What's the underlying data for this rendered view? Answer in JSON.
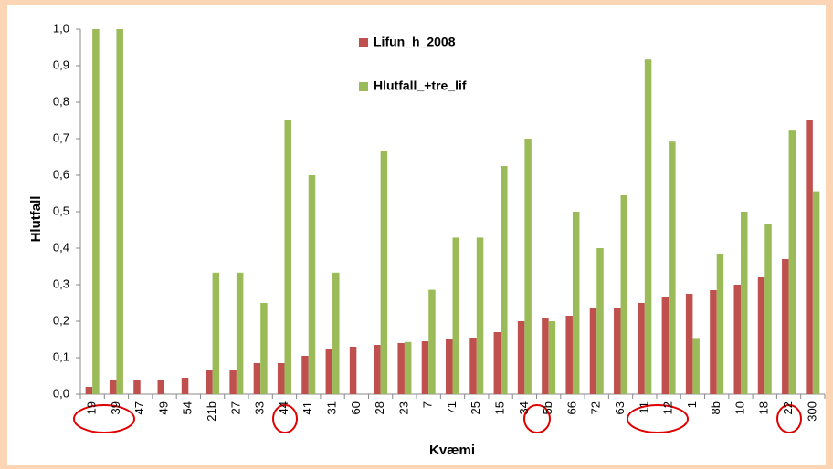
{
  "chart_data": {
    "type": "bar",
    "y_axis_label": "Hlutfall",
    "x_axis_label": "Kvæmi",
    "categories": [
      "19",
      "39",
      "47",
      "49",
      "54",
      "21b",
      "27",
      "33",
      "44",
      "41",
      "31",
      "60",
      "28",
      "23",
      "7",
      "71",
      "25",
      "15",
      "34",
      "5b",
      "66",
      "72",
      "63",
      "11",
      "12",
      "1",
      "8b",
      "10",
      "18",
      "22",
      "300"
    ],
    "series": [
      {
        "name": "Lifun_h_2008",
        "color": "#c0504d",
        "values": [
          0.02,
          0.04,
          0.04,
          0.04,
          0.045,
          0.065,
          0.065,
          0.085,
          0.085,
          0.105,
          0.125,
          0.13,
          0.135,
          0.14,
          0.145,
          0.15,
          0.155,
          0.17,
          0.2,
          0.21,
          0.215,
          0.235,
          0.235,
          0.25,
          0.265,
          0.275,
          0.285,
          0.3,
          0.32,
          0.37,
          0.75
        ]
      },
      {
        "name": "Hlutfall_+tre_lif",
        "color": "#9bbb59",
        "values": [
          1.0,
          1.0,
          0,
          0,
          0,
          0.333,
          0.333,
          0.25,
          0.75,
          0.6,
          0.333,
          0,
          0.667,
          0.143,
          0.286,
          0.429,
          0.429,
          0.625,
          0.7,
          0.2,
          0.5,
          0.4,
          0.545,
          0.917,
          0.692,
          0.154,
          0.385,
          0.5,
          0.467,
          0.722,
          0.556
        ]
      }
    ],
    "ylim": [
      0,
      1
    ],
    "yticks": [
      {
        "value": 0,
        "label": "0,0"
      },
      {
        "value": 0.1,
        "label": "0,1"
      },
      {
        "value": 0.2,
        "label": "0,2"
      },
      {
        "value": 0.3,
        "label": "0,3"
      },
      {
        "value": 0.4,
        "label": "0,4"
      },
      {
        "value": 0.5,
        "label": "0,5"
      },
      {
        "value": 0.6,
        "label": "0,6"
      },
      {
        "value": 0.7,
        "label": "0,7"
      },
      {
        "value": 0.8,
        "label": "0,8"
      },
      {
        "value": 0.9,
        "label": "0,9"
      },
      {
        "value": 1,
        "label": "1,0"
      }
    ],
    "grid": false
  }
}
